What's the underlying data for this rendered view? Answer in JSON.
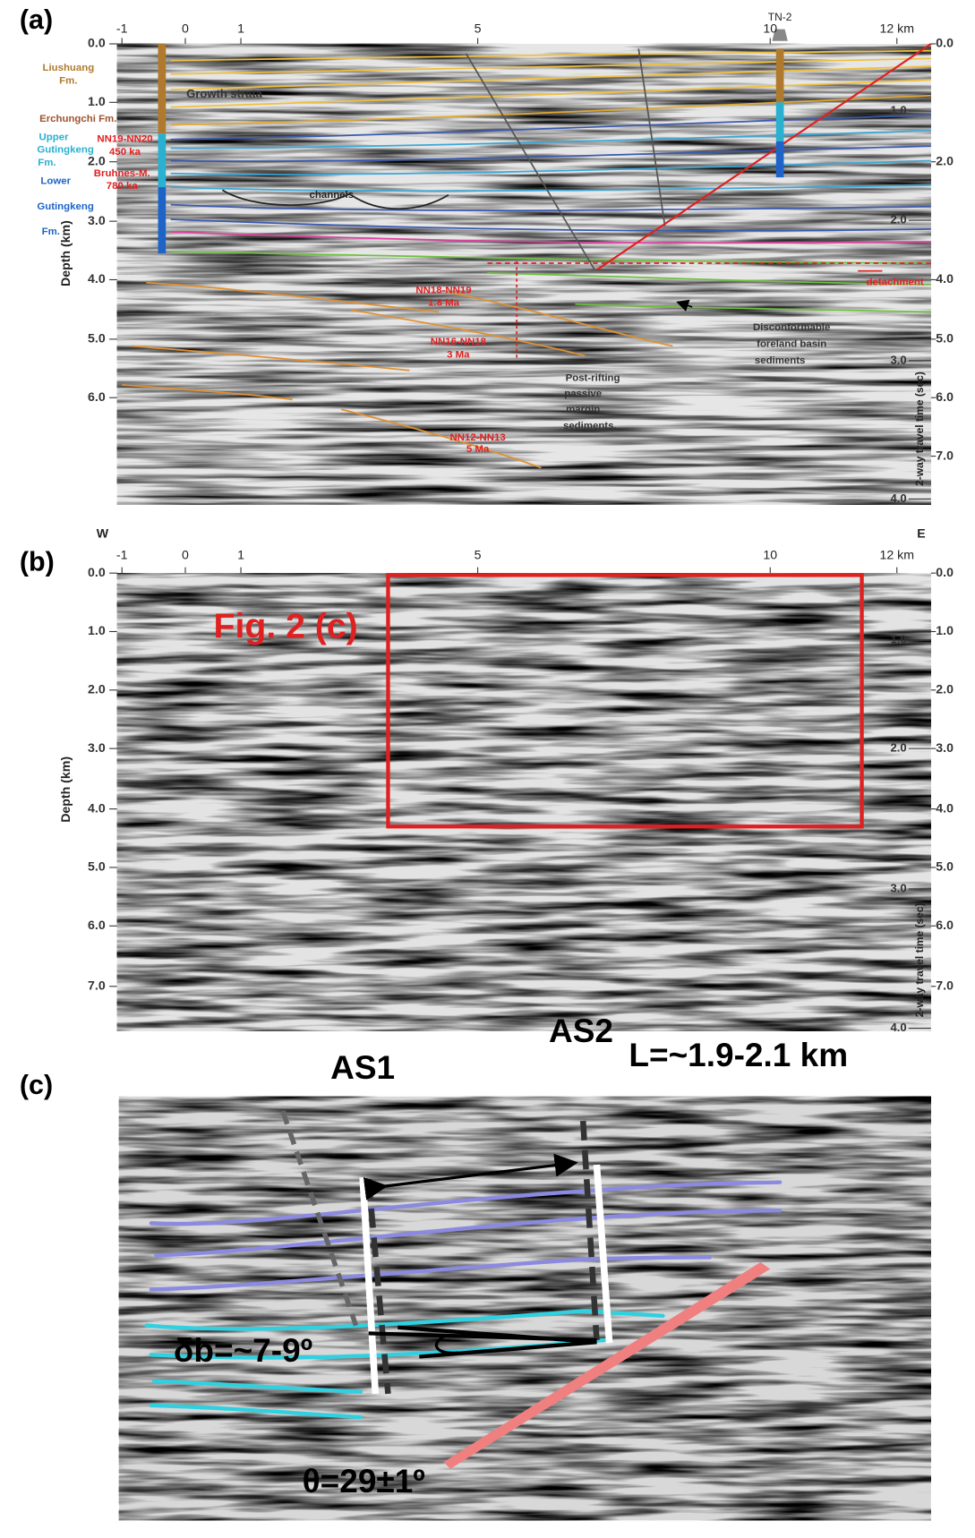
{
  "panels": [
    {
      "label": "(a)",
      "km_ticks": [
        "-1",
        "0",
        "1",
        "5",
        "10",
        "12 km"
      ],
      "well": "TN-2",
      "depth_ticks_left": [
        "0.0",
        "1.0",
        "2.0",
        "3.0",
        "4.0",
        "5.0",
        "6.0"
      ],
      "depth_ticks_right": [
        "0.0",
        "2.0",
        "4.0",
        "5.0",
        "6.0",
        "7.0"
      ],
      "twt_ticks": [
        "1.0",
        "2.0",
        "3.0",
        "4.0"
      ],
      "depth_axis": "Depth (km)",
      "twt_axis": "2-way travel time (sec)",
      "annotations": [
        "Liushuang",
        "Fm.",
        "Growth strata",
        "Erchungchi Fm.",
        "Upper",
        "Gutingkeng",
        "Fm.",
        "NN19-NN20",
        "450 ka",
        "Bruhnes-M.",
        "780 ka",
        "Lower",
        "Gutingkeng",
        "Fm.",
        "channels",
        "detachment",
        "NN18-NN19",
        "1.8 Ma",
        "NN16-NN18",
        "3 Ma",
        "Disconformable",
        "foreland basin",
        "sediments",
        "Post-rifting",
        "passive",
        "margin",
        "sediments.",
        "NN12-NN13",
        "5 Ma"
      ]
    },
    {
      "label": "(b)",
      "km_ticks": [
        "-1",
        "0",
        "1",
        "5",
        "10",
        "12 km"
      ],
      "depth_ticks_left": [
        "0.0",
        "1.0",
        "2.0",
        "3.0",
        "4.0",
        "5.0",
        "6.0",
        "7.0"
      ],
      "depth_ticks_right": [
        "0.0",
        "1.0",
        "2.0",
        "3.0",
        "4.0",
        "5.0",
        "6.0",
        "7.0"
      ],
      "twt_ticks": [
        "1.0",
        "2.0",
        "3.0",
        "4.0"
      ],
      "depth_axis": "Depth (km)",
      "twt_axis": "2-way travel time (sec)",
      "annotations": [
        "W",
        "E",
        "Fig. 2 (c)"
      ]
    },
    {
      "label": "(c)",
      "annotations": [
        "AS1",
        "AS2",
        "L=~1.9-2.1 km",
        "δb=~7-9º",
        "θ=29±1º"
      ]
    }
  ]
}
